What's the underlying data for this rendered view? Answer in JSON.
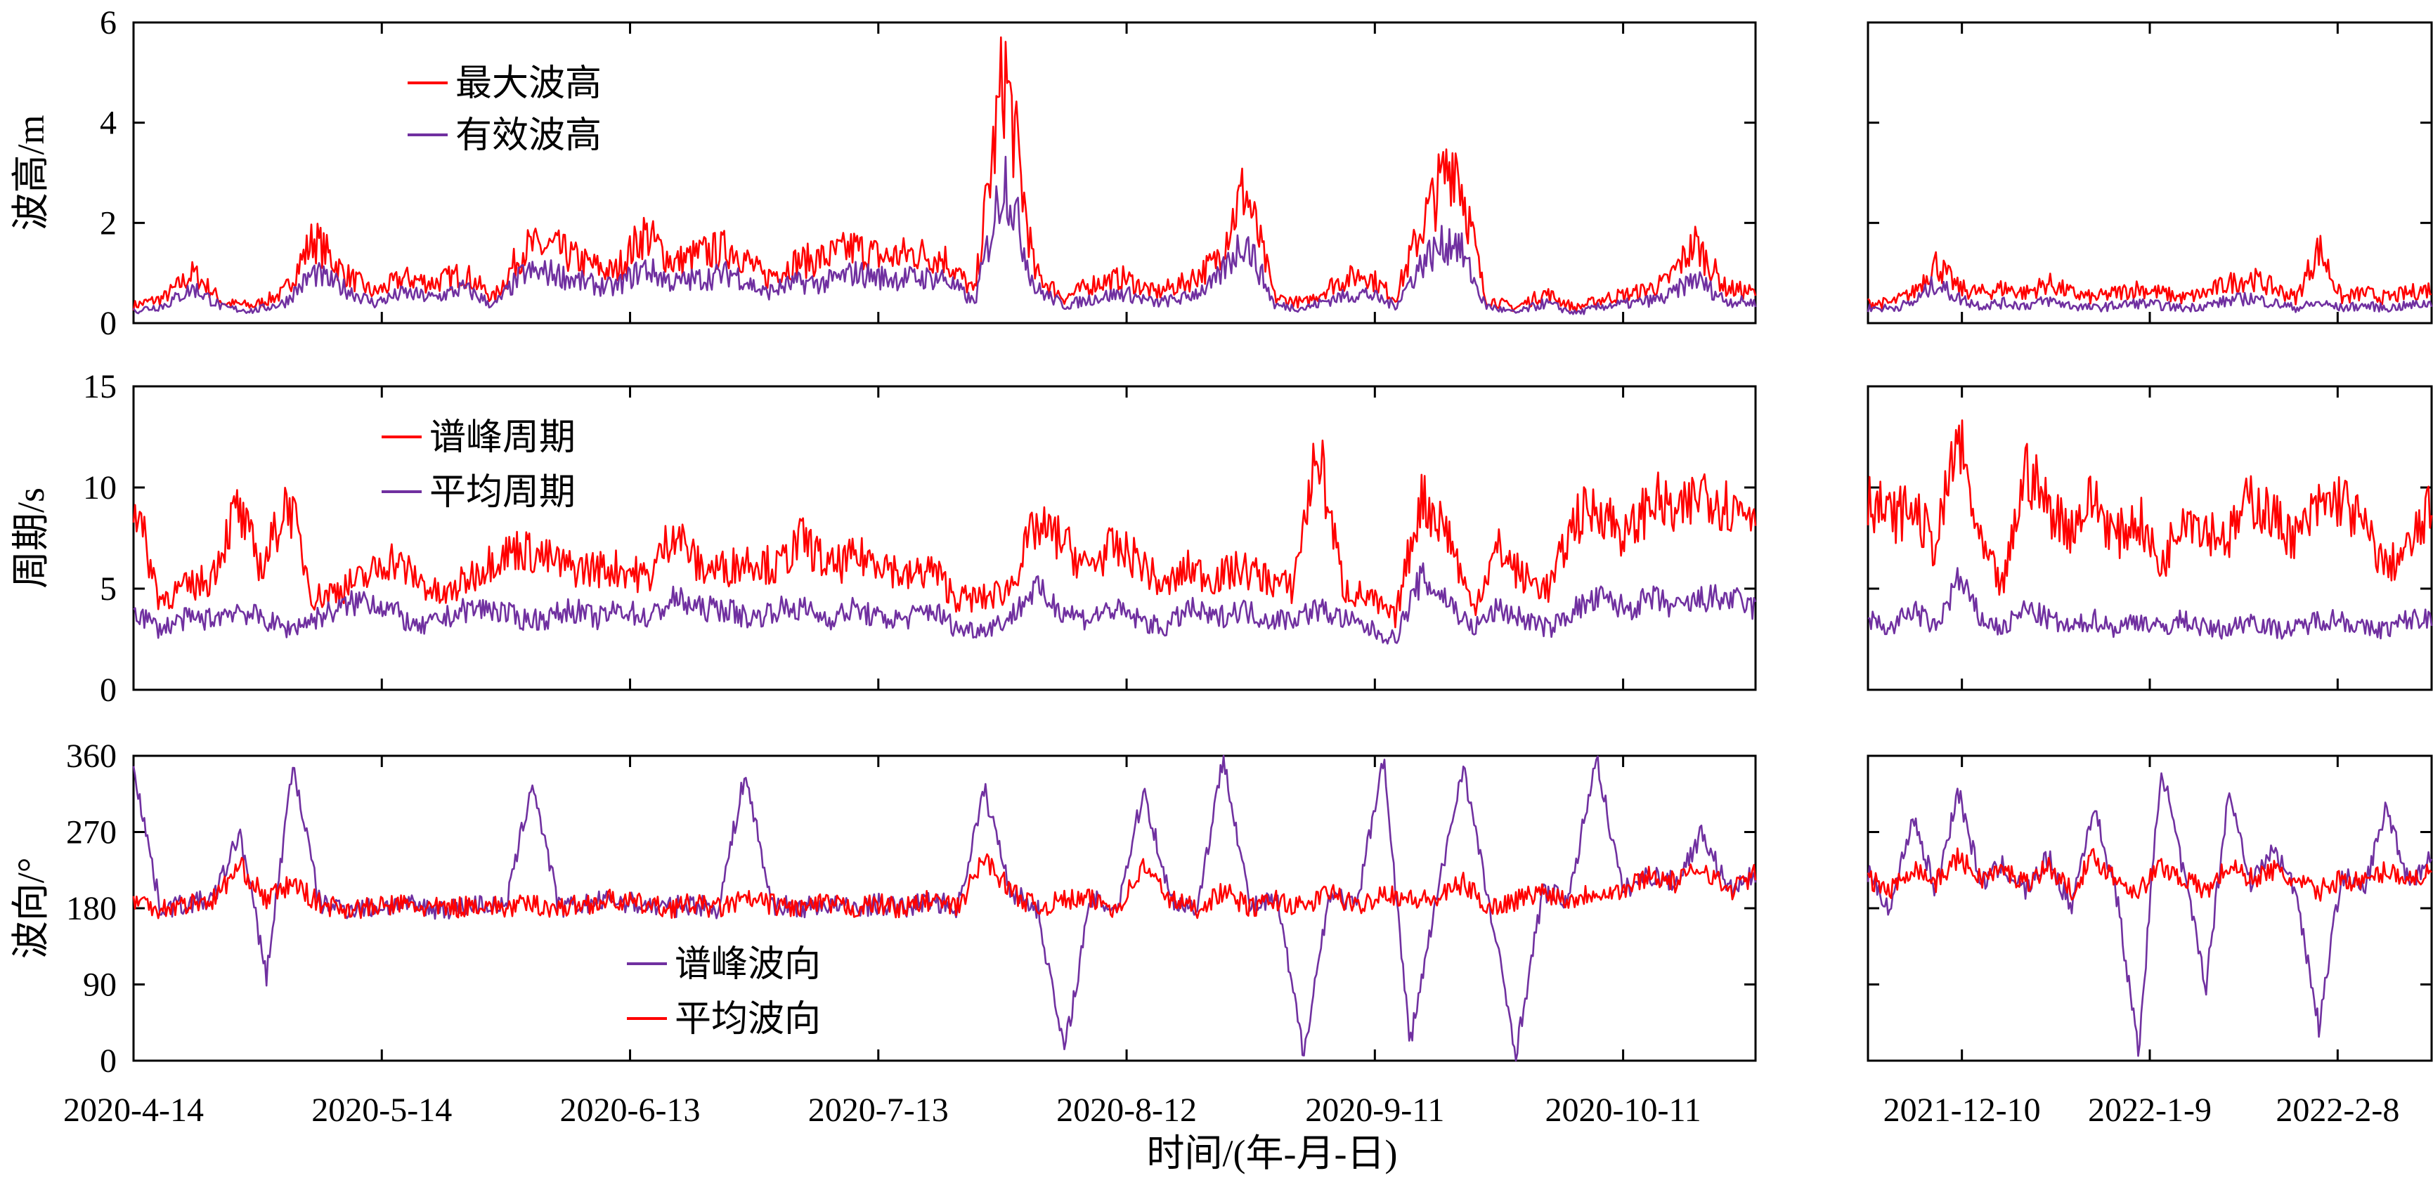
{
  "colors": {
    "max_wave": "#ff0000",
    "sig_wave": "#7030a0",
    "peak_period": "#ff0000",
    "mean_period": "#7030a0",
    "peak_dir": "#7030a0",
    "mean_dir": "#ff0000",
    "axis": "#000000"
  },
  "xlabel": "时间/(年-月-日)",
  "chart_data": [
    {
      "type": "line",
      "ylabel": "波高/m",
      "ylim": [
        0,
        6
      ],
      "yticks": [
        "0",
        "2",
        "4",
        "6"
      ],
      "x_left_ticks": [
        "2020-4-14",
        "2020-5-14",
        "2020-6-13",
        "2020-7-13",
        "2020-8-12",
        "2020-9-11",
        "2020-10-11"
      ],
      "x_right_ticks": [
        "2021-12-10",
        "2022-1-9",
        "2022-2-8"
      ],
      "legend": [
        "最大波高",
        "有效波高"
      ],
      "legend_position": "top-left",
      "series": [
        {
          "name": "最大波高",
          "color": "#ff0000",
          "left_range": [
            "2020-4-14",
            "2020-10-27"
          ],
          "left_values": [
            0.35,
            0.5,
            1.0,
            0.4,
            0.35,
            0.6,
            1.7,
            1.0,
            0.6,
            0.9,
            0.8,
            1.0,
            0.5,
            1.5,
            1.5,
            1.2,
            1.0,
            1.8,
            1.2,
            1.4,
            1.5,
            0.9,
            1.2,
            1.3,
            1.5,
            1.3,
            1.4,
            1.3,
            0.6,
            5.1,
            1.0,
            0.5,
            0.8,
            0.9,
            0.6,
            0.8,
            1.2,
            2.7,
            0.5,
            0.4,
            0.8,
            1.0,
            0.5,
            2.1,
            3.4,
            0.5,
            0.3,
            0.6,
            0.3,
            0.5,
            0.6,
            0.8,
            1.6,
            0.7,
            0.6
          ],
          "right_range": [
            "2021-11-25",
            "2022-2-23"
          ],
          "right_values": [
            0.4,
            0.4,
            0.6,
            1.2,
            0.7,
            0.6,
            0.7,
            0.6,
            0.8,
            0.6,
            0.5,
            0.6,
            0.7,
            0.6,
            0.5,
            0.6,
            0.8,
            0.9,
            0.7,
            0.5,
            1.5,
            0.5,
            0.6,
            0.5,
            0.6,
            0.7
          ]
        },
        {
          "name": "有效波高",
          "color": "#7030a0",
          "left_range": [
            "2020-4-14",
            "2020-10-27"
          ],
          "left_values": [
            0.25,
            0.35,
            0.7,
            0.3,
            0.25,
            0.4,
            1.0,
            0.7,
            0.4,
            0.6,
            0.5,
            0.7,
            0.35,
            1.0,
            1.0,
            0.8,
            0.7,
            1.1,
            0.8,
            0.9,
            1.0,
            0.6,
            0.8,
            0.8,
            1.0,
            0.9,
            0.9,
            0.9,
            0.4,
            3.0,
            0.7,
            0.35,
            0.5,
            0.6,
            0.4,
            0.5,
            0.8,
            1.7,
            0.35,
            0.3,
            0.5,
            0.6,
            0.35,
            1.3,
            1.7,
            0.35,
            0.2,
            0.4,
            0.2,
            0.35,
            0.4,
            0.5,
            0.9,
            0.45,
            0.4
          ],
          "right_range": [
            "2021-11-25",
            "2022-2-23"
          ],
          "right_values": [
            0.3,
            0.3,
            0.4,
            0.8,
            0.5,
            0.35,
            0.4,
            0.35,
            0.45,
            0.35,
            0.3,
            0.35,
            0.4,
            0.35,
            0.3,
            0.35,
            0.45,
            0.5,
            0.4,
            0.3,
            0.4,
            0.3,
            0.35,
            0.3,
            0.35,
            0.4
          ]
        }
      ]
    },
    {
      "type": "line",
      "ylabel": "周期/s",
      "ylim": [
        0,
        15
      ],
      "yticks": [
        "0",
        "5",
        "10",
        "15"
      ],
      "legend": [
        "谱峰周期",
        "平均周期"
      ],
      "legend_position": "top-left",
      "series": [
        {
          "name": "谱峰周期",
          "color": "#ff0000",
          "left_range": [
            "2020-4-14",
            "2020-10-27"
          ],
          "left_values": [
            9.5,
            4.5,
            5.0,
            5.5,
            9.0,
            6.0,
            9.5,
            4.5,
            5.0,
            5.5,
            6.5,
            5.5,
            4.5,
            5.5,
            6.5,
            7.0,
            6.5,
            6.0,
            6.0,
            6.0,
            5.5,
            8.0,
            6.0,
            6.0,
            6.5,
            6.0,
            7.5,
            6.0,
            6.5,
            6.5,
            5.5,
            6.0,
            4.5,
            4.5,
            5.0,
            8.0,
            7.5,
            6.0,
            7.0,
            6.5,
            5.0,
            6.0,
            5.5,
            6.0,
            5.5,
            5.0,
            12.0,
            5.0,
            4.5,
            3.5,
            9.5,
            8.0,
            4.0,
            7.0,
            5.5,
            5.0,
            8.5,
            9.0,
            7.5,
            9.5,
            8.5,
            10.0,
            9.0,
            9.0
          ],
          "right_range": [
            "2021-11-25",
            "2022-2-23"
          ],
          "right_values": [
            9.5,
            8.5,
            9.0,
            7.0,
            12.5,
            7.0,
            5.0,
            11.0,
            9.0,
            8.0,
            9.5,
            7.5,
            8.5,
            6.0,
            9.0,
            8.0,
            7.5,
            9.5,
            8.5,
            7.5,
            9.0,
            9.5,
            8.0,
            6.0,
            7.0,
            9.0
          ]
        },
        {
          "name": "平均周期",
          "color": "#7030a0",
          "left_range": [
            "2020-4-14",
            "2020-10-27"
          ],
          "left_values": [
            4.0,
            3.0,
            3.5,
            3.5,
            4.0,
            3.5,
            3.0,
            3.5,
            4.0,
            4.5,
            4.0,
            3.0,
            3.5,
            4.0,
            4.0,
            3.5,
            3.5,
            4.0,
            3.5,
            4.0,
            3.5,
            4.5,
            4.0,
            4.0,
            3.5,
            4.0,
            4.0,
            3.5,
            4.0,
            3.5,
            3.5,
            4.0,
            3.0,
            3.0,
            3.5,
            5.0,
            4.0,
            3.5,
            4.0,
            3.5,
            3.0,
            4.0,
            3.5,
            4.0,
            3.5,
            3.5,
            4.0,
            3.5,
            3.0,
            2.5,
            5.5,
            4.5,
            3.0,
            4.0,
            3.5,
            3.0,
            4.0,
            4.5,
            4.0,
            4.5,
            4.0,
            4.5,
            4.5,
            4.0
          ],
          "right_range": [
            "2021-11-25",
            "2022-2-23"
          ],
          "right_values": [
            3.5,
            3.0,
            4.0,
            3.0,
            5.5,
            3.5,
            3.0,
            4.0,
            3.5,
            3.0,
            3.5,
            3.0,
            3.5,
            3.0,
            3.5,
            3.0,
            3.0,
            3.5,
            3.0,
            3.0,
            3.5,
            3.5,
            3.0,
            3.0,
            3.5,
            3.5
          ]
        }
      ]
    },
    {
      "type": "line",
      "ylabel": "波向/°",
      "ylim": [
        0,
        360
      ],
      "yticks": [
        "0",
        "90",
        "180",
        "270",
        "360"
      ],
      "legend": [
        "谱峰波向",
        "平均波向"
      ],
      "legend_position": "bottom-center",
      "series": [
        {
          "name": "谱峰波向",
          "color": "#7030a0",
          "left_range": [
            "2020-4-14",
            "2020-10-27"
          ],
          "left_values": [
            350,
            180,
            185,
            190,
            270,
            100,
            350,
            185,
            180,
            180,
            185,
            180,
            180,
            185,
            180,
            330,
            180,
            185,
            190,
            185,
            180,
            185,
            180,
            340,
            185,
            180,
            185,
            180,
            185,
            180,
            190,
            180,
            320,
            200,
            180,
            10,
            190,
            180,
            320,
            190,
            180,
            360,
            180,
            190,
            10,
            200,
            180,
            360,
            20,
            190,
            350,
            180,
            10,
            200,
            190,
            360,
            200,
            220,
            210,
            270,
            200,
            220
          ],
          "right_range": [
            "2021-11-25",
            "2022-2-23"
          ],
          "right_values": [
            220,
            180,
            290,
            200,
            320,
            210,
            230,
            200,
            240,
            180,
            300,
            200,
            10,
            350,
            220,
            90,
            320,
            210,
            250,
            200,
            40,
            220,
            200,
            300,
            210,
            240
          ]
        },
        {
          "name": "平均波向",
          "color": "#ff0000",
          "left_range": [
            "2020-4-14",
            "2020-10-27"
          ],
          "left_values": [
            190,
            180,
            185,
            190,
            230,
            190,
            210,
            185,
            180,
            180,
            185,
            180,
            180,
            185,
            180,
            185,
            180,
            185,
            190,
            185,
            180,
            185,
            180,
            190,
            185,
            180,
            185,
            180,
            185,
            180,
            190,
            180,
            240,
            200,
            180,
            190,
            190,
            180,
            230,
            190,
            180,
            200,
            180,
            190,
            180,
            200,
            180,
            200,
            190,
            190,
            210,
            180,
            190,
            200,
            190,
            200,
            200,
            220,
            210,
            230,
            200,
            220
          ],
          "right_range": [
            "2021-11-25",
            "2022-2-23"
          ],
          "right_values": [
            215,
            200,
            230,
            210,
            240,
            215,
            225,
            210,
            230,
            200,
            240,
            215,
            200,
            230,
            215,
            200,
            230,
            215,
            225,
            210,
            200,
            215,
            210,
            225,
            215,
            220
          ]
        }
      ]
    }
  ]
}
